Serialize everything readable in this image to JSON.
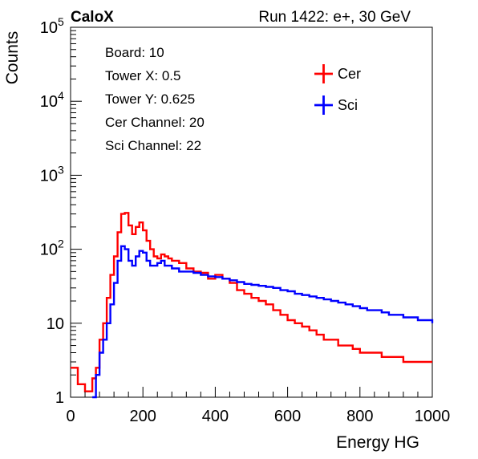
{
  "header": {
    "brand": "CaloX",
    "run_info": "Run 1422: e+, 30 GeV"
  },
  "info_box": {
    "lines": [
      "Board: 10",
      "Tower X: 0.5",
      "Tower Y: 0.625",
      "Cer Channel: 20",
      "Sci Channel: 22"
    ]
  },
  "legend": {
    "entries": [
      {
        "label": "Cer",
        "color": "#ff0000"
      },
      {
        "label": "Sci",
        "color": "#0000ff"
      }
    ]
  },
  "chart_data": {
    "type": "line",
    "title": "",
    "xlabel": "Energy HG",
    "ylabel": "Counts",
    "xlim": [
      0,
      1000
    ],
    "ylim": [
      1,
      100000
    ],
    "yscale": "log",
    "x_ticks": [
      0,
      200,
      400,
      600,
      800,
      1000
    ],
    "x_tick_labels": [
      "0",
      "200",
      "400",
      "600",
      "800",
      "1000"
    ],
    "y_ticks": [
      1,
      10,
      100,
      1000,
      10000,
      100000
    ],
    "y_tick_labels": [
      {
        "base": "1",
        "exp": ""
      },
      {
        "base": "10",
        "exp": ""
      },
      {
        "base": "10",
        "exp": "2"
      },
      {
        "base": "10",
        "exp": "3"
      },
      {
        "base": "10",
        "exp": "4"
      },
      {
        "base": "10",
        "exp": "5"
      }
    ],
    "grid": false,
    "legend_position": "top-right",
    "series": [
      {
        "name": "Cer",
        "color": "#ff0000",
        "x": [
          0,
          20,
          40,
          60,
          70,
          80,
          90,
          100,
          110,
          120,
          130,
          140,
          150,
          160,
          170,
          180,
          190,
          200,
          210,
          220,
          230,
          240,
          250,
          260,
          270,
          280,
          300,
          320,
          340,
          360,
          380,
          400,
          420,
          440,
          460,
          480,
          500,
          520,
          540,
          560,
          580,
          600,
          620,
          640,
          660,
          680,
          700,
          720,
          740,
          760,
          780,
          800,
          820,
          840,
          860,
          880,
          900,
          920,
          940,
          960,
          980,
          1000
        ],
        "y": [
          2.5,
          1.5,
          1.2,
          1.8,
          2.5,
          6,
          10,
          22,
          45,
          80,
          170,
          300,
          310,
          210,
          160,
          200,
          230,
          180,
          130,
          100,
          80,
          75,
          85,
          80,
          75,
          70,
          65,
          55,
          50,
          48,
          40,
          45,
          40,
          35,
          28,
          25,
          22,
          20,
          18,
          15,
          13,
          11,
          10,
          9,
          8,
          7,
          6,
          6,
          5,
          5,
          4.5,
          4,
          4,
          4,
          3.5,
          3.5,
          3.5,
          3,
          3,
          3,
          3,
          3
        ]
      },
      {
        "name": "Sci",
        "color": "#0000ff",
        "x": [
          60,
          70,
          80,
          90,
          100,
          110,
          120,
          130,
          140,
          150,
          160,
          170,
          180,
          190,
          200,
          210,
          220,
          230,
          240,
          250,
          260,
          270,
          280,
          300,
          320,
          340,
          360,
          380,
          400,
          420,
          440,
          460,
          480,
          500,
          520,
          540,
          560,
          580,
          600,
          620,
          640,
          660,
          680,
          700,
          720,
          740,
          760,
          780,
          800,
          820,
          840,
          860,
          880,
          900,
          920,
          940,
          960,
          980,
          1000
        ],
        "y": [
          1,
          2,
          4,
          6,
          10,
          18,
          35,
          70,
          110,
          100,
          70,
          60,
          80,
          95,
          90,
          70,
          60,
          60,
          65,
          70,
          60,
          60,
          55,
          50,
          50,
          48,
          45,
          43,
          42,
          40,
          38,
          36,
          34,
          33,
          32,
          31,
          30,
          28,
          27,
          25,
          24,
          23,
          22,
          21,
          20,
          19,
          18,
          17,
          16,
          15,
          15,
          14,
          13,
          13,
          12,
          12,
          11,
          11,
          10
        ]
      }
    ]
  }
}
